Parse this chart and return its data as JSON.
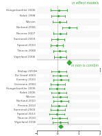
{
  "title_top": "in effect models",
  "title_bottom": "in non is combin",
  "subtitle_top": "in effect models",
  "fixed_studies": [
    {
      "label": "Hungerbuehler 2006",
      "mean": 0.05,
      "ci_low": -0.35,
      "ci_high": 0.45
    },
    {
      "label": "Kolak 1998",
      "mean": 0.02,
      "ci_low": -0.3,
      "ci_high": 0.35
    },
    {
      "label": "Nilsson",
      "mean": 0.08,
      "ci_low": -0.25,
      "ci_high": 0.42
    },
    {
      "label": "Norland 2006",
      "mean": 0.55,
      "ci_low": 0.2,
      "ci_high": 0.9
    },
    {
      "label": "Novena 2007",
      "mean": 0.1,
      "ci_low": -0.2,
      "ci_high": 0.4
    },
    {
      "label": "Sarmendi 2003",
      "mean": 0.0,
      "ci_low": -0.3,
      "ci_high": 0.3
    },
    {
      "label": "Spaniol 2003",
      "mean": -0.05,
      "ci_low": -0.35,
      "ci_high": 0.25
    },
    {
      "label": "Tiburcio 2008",
      "mean": 0.08,
      "ci_low": -0.22,
      "ci_high": 0.38
    },
    {
      "label": "Vigerland 2006",
      "mean": 0.12,
      "ci_low": -0.18,
      "ci_high": 0.42
    }
  ],
  "fixed_pooled": {
    "mean": 0.55,
    "ci_low": 0.45,
    "ci_high": 0.65
  },
  "random_studies": [
    {
      "label": "Bishop 2003",
      "mean": 0.05,
      "ci_low": -0.3,
      "ci_high": 0.4
    },
    {
      "label": "De Graaf 2000",
      "mean": 0.1,
      "ci_low": -0.25,
      "ci_high": 0.45
    },
    {
      "label": "Eustasy 2003",
      "mean": 0.15,
      "ci_low": -0.2,
      "ci_high": 0.5
    },
    {
      "label": "Germann 2000",
      "mean": 0.0,
      "ci_low": -0.35,
      "ci_high": 0.35
    },
    {
      "label": "Hungerbuehler 2006",
      "mean": -0.05,
      "ci_low": -0.4,
      "ci_high": 0.3
    },
    {
      "label": "Kolak 2006",
      "mean": 0.05,
      "ci_low": -0.3,
      "ci_high": 0.4
    },
    {
      "label": "Nilsson",
      "mean": 0.1,
      "ci_low": -0.25,
      "ci_high": 0.45
    },
    {
      "label": "Norland 2010",
      "mean": 0.15,
      "ci_low": -0.2,
      "ci_high": 0.5
    },
    {
      "label": "Pereira 2013",
      "mean": 0.05,
      "ci_low": -0.3,
      "ci_high": 0.4
    },
    {
      "label": "Sarmendi 2003",
      "mean": 0.0,
      "ci_low": -0.35,
      "ci_high": 0.35
    },
    {
      "label": "Spaniol 2013",
      "mean": -0.05,
      "ci_low": -0.4,
      "ci_high": 0.3
    },
    {
      "label": "Tiburcio 2010",
      "mean": 0.08,
      "ci_low": -0.27,
      "ci_high": 0.43
    },
    {
      "label": "Vigerland 2016",
      "mean": 0.12,
      "ci_low": -0.23,
      "ci_high": 0.47
    }
  ],
  "random_pooled": {
    "mean": 0.15,
    "ci_low": 0.05,
    "ci_high": 0.25
  },
  "line_color": "#33aa33",
  "diamond_color": "#33aa33",
  "dot_color": "#33aa33",
  "bg_color": "#ffffff",
  "label_color": "#555555",
  "title_color": "#33aa33",
  "fixed_xlim": [
    -1,
    2
  ],
  "random_xlim": [
    -1,
    2
  ],
  "fixed_xticks": [
    -1,
    0,
    1,
    2
  ],
  "random_xticks": [
    -1,
    0,
    1,
    2
  ],
  "label_fontsize": 3.0,
  "title_fontsize": 3.5,
  "tick_fontsize": 3.0
}
